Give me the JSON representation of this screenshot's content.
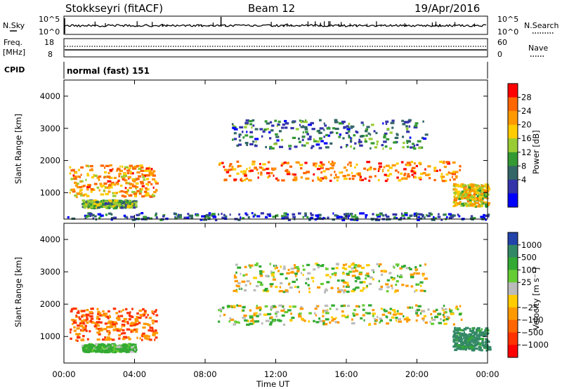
{
  "header": {
    "station": "Stokkseyri (fitACF)",
    "beam": "Beam 12",
    "date": "19/Apr/2016"
  },
  "left_labels": {
    "nsky": "N.Sky",
    "freq_line1": "Freq.",
    "freq_line2": "[MHz]",
    "cpid": "CPID"
  },
  "right_labels": {
    "nsearch": "N.Search",
    "nave": "Nave"
  },
  "noise_axis": {
    "left_top": "10^5",
    "left_bottom": "10^0",
    "right_top": "10^5",
    "right_bottom": "10^0"
  },
  "freq_axis": {
    "left_top": "18",
    "left_bottom": "8",
    "right_top": "60",
    "right_bottom": "0"
  },
  "cpid_text": "normal (fast) 151",
  "power_colorbar": {
    "label": "Power [dB]",
    "ticks": [
      "28",
      "24",
      "20",
      "16",
      "12",
      "8",
      "4"
    ],
    "colors": [
      "#ff0000",
      "#ff6600",
      "#ff9900",
      "#ffcc00",
      "#99cc33",
      "#339933",
      "#336666",
      "#3333aa",
      "#0000ff"
    ]
  },
  "velocity_colorbar": {
    "label": "Velocity [m s⁻¹]",
    "ticks": [
      "1000",
      "500",
      "100",
      "25",
      "−25",
      "−100",
      "−500",
      "−1000"
    ],
    "colors": [
      "#2244aa",
      "#338866",
      "#33aa33",
      "#66cc33",
      "#bbbbbb",
      "#ffcc00",
      "#ff9900",
      "#ff6600",
      "#ff3300",
      "#ff0000"
    ]
  },
  "chart_data": [
    {
      "type": "heatmap",
      "title": "",
      "ylabel": "Slant Range [km]",
      "xlabel": "",
      "yticks": [
        "1000",
        "2000",
        "3000",
        "4000"
      ],
      "ylim": [
        180,
        4500
      ],
      "xlim_hours": [
        0,
        24
      ],
      "color_quantity": "Power [dB]",
      "features": [
        {
          "name": "early echo band",
          "t_start": 0.3,
          "t_end": 5.2,
          "range_min": 900,
          "range_max": 1900,
          "power_db": 22
        },
        {
          "name": "lower early band",
          "t_start": 1.0,
          "t_end": 4.0,
          "range_min": 550,
          "range_max": 800,
          "power_db": 12
        },
        {
          "name": "main midday band",
          "t_start": 8.7,
          "t_end": 22.5,
          "range_min": 1400,
          "range_max": 2000,
          "power_db": 24
        },
        {
          "name": "upper sparse echoes",
          "t_start": 9.5,
          "t_end": 20.5,
          "range_min": 2400,
          "range_max": 3300,
          "power_db": 8
        },
        {
          "name": "late echo patch",
          "t_start": 22.0,
          "t_end": 24.0,
          "range_min": 600,
          "range_max": 1300,
          "power_db": 18
        },
        {
          "name": "ground scatter near range",
          "t_start": 0.0,
          "t_end": 24.0,
          "range_min": 180,
          "range_max": 400,
          "power_db": 6
        }
      ]
    },
    {
      "type": "heatmap",
      "title": "",
      "ylabel": "Slant Range [km]",
      "xlabel": "Time UT",
      "xticks": [
        "00:00",
        "04:00",
        "08:00",
        "12:00",
        "16:00",
        "20:00",
        "00:00"
      ],
      "yticks": [
        "1000",
        "2000",
        "3000",
        "4000"
      ],
      "ylim": [
        180,
        4500
      ],
      "xlim_hours": [
        0,
        24
      ],
      "color_quantity": "Velocity [m s⁻¹]",
      "features": [
        {
          "name": "early echo band",
          "t_start": 0.3,
          "t_end": 5.2,
          "range_min": 900,
          "range_max": 1900,
          "velocity": -300
        },
        {
          "name": "lower early band",
          "t_start": 1.0,
          "t_end": 4.0,
          "range_min": 550,
          "range_max": 800,
          "velocity": 150
        },
        {
          "name": "main midday band",
          "t_start": 8.7,
          "t_end": 22.5,
          "range_min": 1400,
          "range_max": 2000,
          "velocity": 0
        },
        {
          "name": "upper sparse echoes",
          "t_start": 9.5,
          "t_end": 20.5,
          "range_min": 2400,
          "range_max": 3300,
          "velocity": 0
        },
        {
          "name": "late echo patch",
          "t_start": 22.0,
          "t_end": 24.0,
          "range_min": 600,
          "range_max": 1300,
          "velocity": 400
        }
      ]
    }
  ]
}
